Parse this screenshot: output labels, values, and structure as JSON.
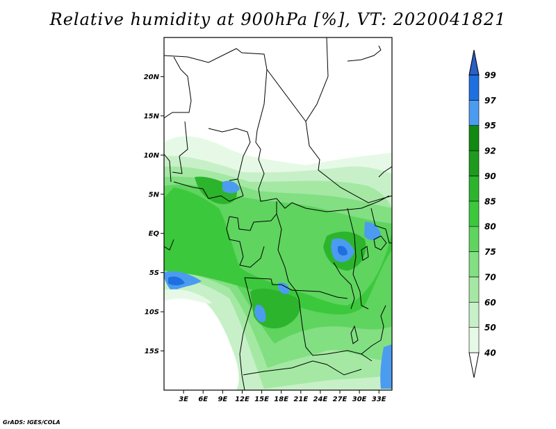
{
  "title": "Relative humidity at 900hPa [%], VT: 2020041821",
  "footer": "GrADS: IGES/COLA",
  "map": {
    "lat_range": [
      -20,
      25
    ],
    "lon_range": [
      0,
      35
    ],
    "lat_ticks": [
      {
        "value": 20,
        "label": "20N"
      },
      {
        "value": 15,
        "label": "15N"
      },
      {
        "value": 10,
        "label": "10N"
      },
      {
        "value": 5,
        "label": "5N"
      },
      {
        "value": 0,
        "label": "EQ"
      },
      {
        "value": -5,
        "label": "5S"
      },
      {
        "value": -10,
        "label": "10S"
      },
      {
        "value": -15,
        "label": "15S"
      }
    ],
    "lon_ticks": [
      {
        "value": 3,
        "label": "3E"
      },
      {
        "value": 6,
        "label": "6E"
      },
      {
        "value": 9,
        "label": "9E"
      },
      {
        "value": 12,
        "label": "12E"
      },
      {
        "value": 15,
        "label": "15E"
      },
      {
        "value": 18,
        "label": "18E"
      },
      {
        "value": 21,
        "label": "21E"
      },
      {
        "value": 24,
        "label": "24E"
      },
      {
        "value": 27,
        "label": "27E"
      },
      {
        "value": 30,
        "label": "30E"
      },
      {
        "value": 33,
        "label": "33E"
      }
    ]
  },
  "colorbar": {
    "levels": [
      "40",
      "50",
      "60",
      "70",
      "75",
      "80",
      "85",
      "90",
      "92",
      "95",
      "97",
      "99"
    ],
    "colors": [
      "#ffffff",
      "#e6f9e6",
      "#c8f0c8",
      "#a4e8a4",
      "#82df82",
      "#5fd45f",
      "#3cc83c",
      "#2db42d",
      "#1e9b1e",
      "#118a11",
      "#4b9cf0",
      "#1f6fe0",
      "#2a5fc4"
    ]
  }
}
